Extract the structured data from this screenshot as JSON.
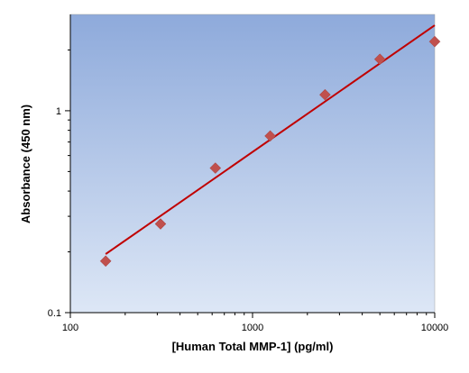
{
  "chart_data": {
    "type": "scatter",
    "title": "",
    "xlabel": "[Human Total MMP-1] (pg/ml)",
    "ylabel": "Absorbance (450 nm)",
    "xscale": "log",
    "yscale": "log",
    "xlim": [
      100,
      10000
    ],
    "ylim": [
      0.1,
      3
    ],
    "x_ticks": [
      {
        "value": 100,
        "label": "100"
      },
      {
        "value": 1000,
        "label": "1000"
      },
      {
        "value": 10000,
        "label": "10000"
      }
    ],
    "y_ticks": [
      {
        "value": 0.1,
        "label": "0.1"
      },
      {
        "value": 1,
        "label": "1"
      }
    ],
    "grid": false,
    "legend": "none",
    "series": [
      {
        "kind": "points",
        "marker": "diamond",
        "color": "#c0504d",
        "x": [
          156.25,
          312.5,
          625,
          1250,
          2500,
          5000,
          10000
        ],
        "y": [
          0.18,
          0.275,
          0.52,
          0.75,
          1.2,
          1.8,
          2.2
        ]
      },
      {
        "kind": "fit-line",
        "color": "#c00000",
        "x": [
          156.25,
          10000
        ],
        "y": [
          0.195,
          2.65
        ]
      }
    ],
    "colors": {
      "plot_bg_top": "#8eaadb",
      "plot_bg_bottom": "#dde7f6"
    }
  }
}
